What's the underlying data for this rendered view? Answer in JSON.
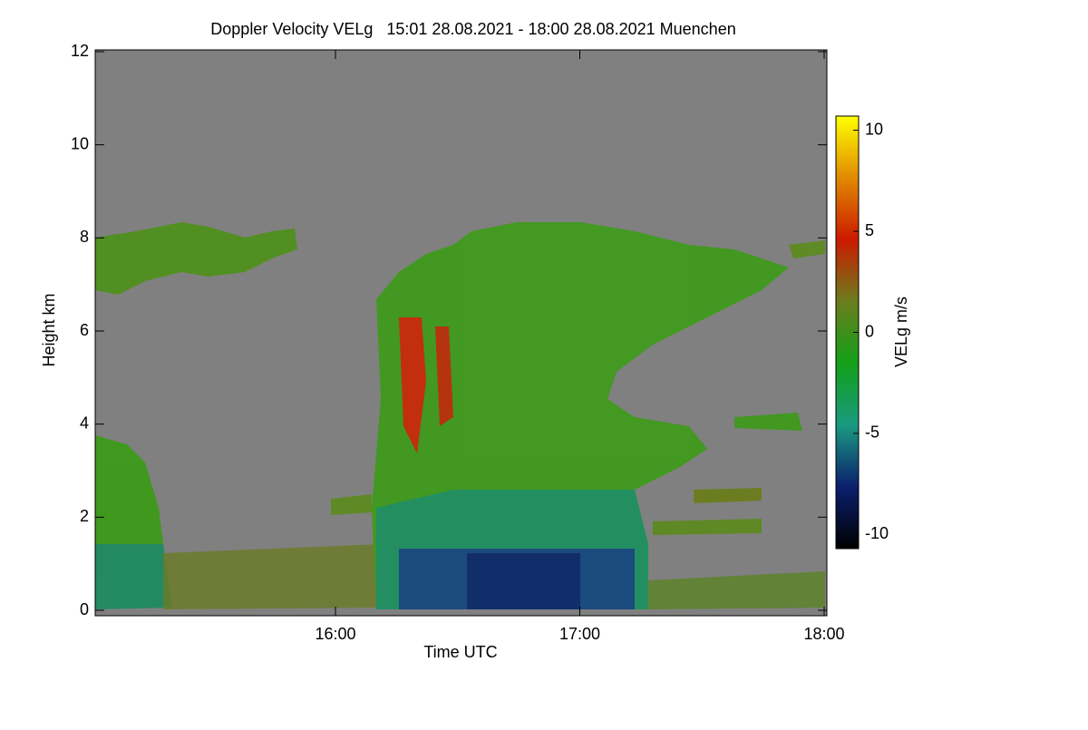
{
  "chart_data": {
    "type": "heatmap",
    "title": "Doppler Velocity VELg   15:01 28.08.2021 - 18:00 28.08.2021 Muenchen",
    "x_label": "Time UTC",
    "y_label": "Height km",
    "colorbar_label": "VELg m/s",
    "xlim": [
      901,
      1080
    ],
    "xticks": [
      {
        "value": 960,
        "label": "16:00"
      },
      {
        "value": 1020,
        "label": "17:00"
      },
      {
        "value": 1080,
        "label": "18:00"
      }
    ],
    "ylim": [
      0,
      12
    ],
    "yticks": [
      0,
      2,
      4,
      6,
      8,
      10,
      12
    ],
    "clim": [
      -10.7,
      10.7
    ],
    "cticks": [
      -10,
      -5,
      0,
      5,
      10
    ],
    "colormap": [
      "#000000",
      "#0b1f6e",
      "#1a9a80",
      "#12a018",
      "#6b7d1c",
      "#cc1a00",
      "#e08a00",
      "#ffff00"
    ],
    "background": "#808080"
  }
}
